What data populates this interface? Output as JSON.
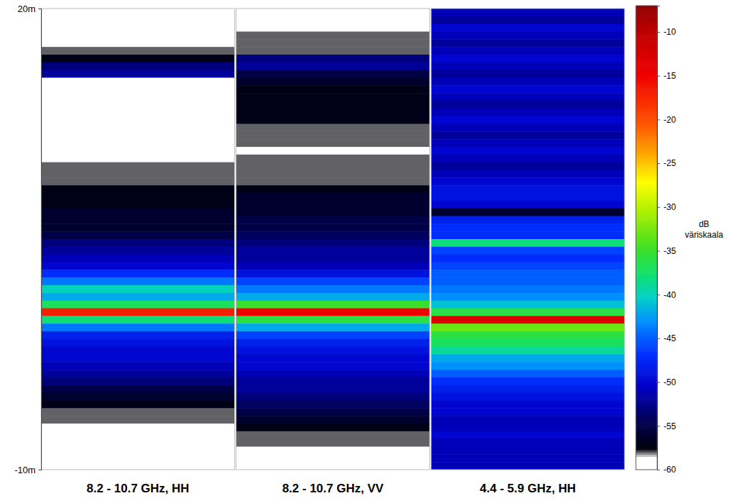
{
  "chart_data": {
    "type": "heatmap",
    "tick_labels": "y",
    "ylim": [
      -10,
      20
    ],
    "yticks": [
      {
        "value": 20,
        "label": "20m"
      },
      {
        "value": -10,
        "label": "-10m"
      }
    ],
    "y": [
      19.75,
      19.25,
      18.75,
      18.25,
      17.75,
      17.25,
      16.75,
      16.25,
      15.75,
      15.25,
      14.75,
      14.25,
      13.75,
      13.25,
      12.75,
      12.25,
      11.75,
      11.25,
      10.75,
      10.25,
      9.75,
      9.25,
      8.75,
      8.25,
      7.75,
      7.25,
      6.75,
      6.25,
      5.75,
      5.25,
      4.75,
      4.25,
      3.75,
      3.25,
      2.75,
      2.25,
      1.75,
      1.25,
      0.75,
      0.25,
      -0.25,
      -0.75,
      -1.25,
      -1.75,
      -2.25,
      -2.75,
      -3.25,
      -3.75,
      -4.25,
      -4.75,
      -5.25,
      -5.75,
      -6.25,
      -6.75,
      -7.25,
      -7.75,
      -8.25,
      -8.75,
      -9.25,
      -9.75
    ],
    "panels": [
      {
        "title": "8.2 - 10.7 GHz, HH",
        "values": [
          -60,
          -60,
          -60,
          -60,
          -59,
          -58,
          -57,
          -53,
          -52,
          -59,
          -60,
          -60,
          -60,
          -60,
          -60,
          -59,
          -60,
          -59,
          -59,
          -59,
          -58,
          -58,
          -58,
          -57,
          -57,
          -57,
          -56,
          -56,
          -56,
          -55,
          -53,
          -52,
          -51,
          -50,
          -47,
          -44,
          -40,
          -42,
          -37,
          -17,
          -38,
          -44,
          -48,
          -49,
          -50,
          -50,
          -51,
          -52,
          -53,
          -55,
          -56,
          -57,
          -58,
          -58,
          -59,
          -59,
          -60,
          -60,
          -60,
          -60
        ]
      },
      {
        "title": "8.2 - 10.7 GHz, VV",
        "values": [
          -59,
          -59,
          -59,
          -58,
          -58,
          -58,
          -53,
          -52,
          -55,
          -56,
          -57,
          -57,
          -57,
          -57,
          -57,
          -58,
          -58,
          -58,
          -59,
          -58,
          -58,
          -58,
          -58,
          -57,
          -56,
          -56,
          -56,
          -55,
          -55,
          -54,
          -53,
          -52,
          -52,
          -51,
          -49,
          -46,
          -44,
          -42,
          -35,
          -15,
          -36,
          -42,
          -46,
          -48,
          -49,
          -50,
          -50,
          -51,
          -52,
          -52,
          -53,
          -54,
          -55,
          -56,
          -57,
          -58,
          -58,
          -59,
          -59,
          -59
        ]
      },
      {
        "title": "4.4 - 5.9 GHz, HH",
        "values": [
          -51,
          -52,
          -50,
          -51,
          -52,
          -51,
          -50,
          -51,
          -52,
          -51,
          -50,
          -51,
          -52,
          -51,
          -50,
          -51,
          -52,
          -51,
          -50,
          -51,
          -52,
          -51,
          -50,
          -49,
          -49,
          -50,
          -56,
          -48,
          -47,
          -47,
          -38,
          -46,
          -47,
          -46,
          -45,
          -45,
          -44,
          -43,
          -41,
          -36,
          -13,
          -33,
          -36,
          -37,
          -39,
          -42,
          -43,
          -45,
          -47,
          -48,
          -49,
          -50,
          -50,
          -51,
          -51,
          -50,
          -51,
          -51,
          -51,
          -51
        ]
      }
    ],
    "colorbar": {
      "label": "dB väriskaala",
      "range": [
        -60,
        -7
      ],
      "ticks": [
        -10,
        -15,
        -20,
        -25,
        -30,
        -35,
        -40,
        -45,
        -50,
        -55,
        -60
      ]
    }
  }
}
